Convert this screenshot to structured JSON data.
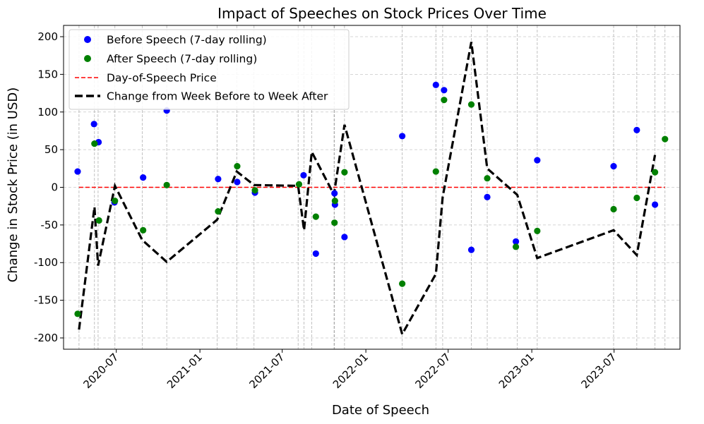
{
  "chart_data": {
    "type": "scatter",
    "title": "Impact of Speeches on Stock Prices Over Time",
    "xlabel": "Date of Speech",
    "ylabel": "Change in Stock Price (in USD)",
    "xlim": [
      "2020-03-07",
      "2023-11-23"
    ],
    "ylim": [
      -215,
      215
    ],
    "x_ticks": [
      "2020-07-01",
      "2021-01-01",
      "2021-07-01",
      "2022-01-01",
      "2022-07-01",
      "2023-01-01",
      "2023-07-01"
    ],
    "x_tick_labels": [
      "2020-07",
      "2021-01",
      "2021-07",
      "2022-01",
      "2022-07",
      "2023-01",
      "2023-07"
    ],
    "y_ticks": [
      -200,
      -150,
      -100,
      -50,
      0,
      50,
      100,
      150,
      200
    ],
    "grid": true,
    "legend_placement": "top-left",
    "speech_dates": [
      "2020-04-10",
      "2020-05-14",
      "2020-05-22",
      "2020-06-28",
      "2020-08-27",
      "2020-10-20",
      "2021-02-08",
      "2021-03-23",
      "2021-04-30",
      "2021-08-05",
      "2021-08-18",
      "2021-09-04",
      "2021-10-23",
      "2021-10-24",
      "2021-11-15",
      "2022-03-22",
      "2022-06-04",
      "2022-06-19",
      "2022-08-21",
      "2022-09-25",
      "2022-11-30",
      "2023-01-13",
      "2023-06-30",
      "2023-08-20",
      "2023-09-29",
      "2023-10-21"
    ],
    "series": [
      {
        "name": "Before Speech (7-day rolling)",
        "kind": "scatter",
        "color": "#0000ff",
        "x": [
          "2020-04-07",
          "2020-05-13",
          "2020-05-23",
          "2020-06-27",
          "2020-08-29",
          "2020-10-20",
          "2021-02-10",
          "2021-03-24",
          "2021-05-02",
          "2021-08-17",
          "2021-09-13",
          "2021-10-24",
          "2021-10-25",
          "2021-11-15",
          "2022-03-22",
          "2022-06-04",
          "2022-06-22",
          "2022-08-21",
          "2022-09-25",
          "2022-11-27",
          "2023-01-13",
          "2023-06-30",
          "2023-08-20",
          "2023-09-29"
        ],
        "y": [
          21,
          84,
          60,
          -20,
          13,
          102,
          11,
          7,
          -7,
          16,
          -88,
          -8,
          -23,
          -66,
          68,
          136,
          129,
          -83,
          -13,
          -72,
          36,
          28,
          76,
          -23
        ]
      },
      {
        "name": "After Speech (7-day rolling)",
        "kind": "scatter",
        "color": "#008000",
        "x": [
          "2020-04-07",
          "2020-05-14",
          "2020-05-24",
          "2020-06-28",
          "2020-08-29",
          "2020-10-20",
          "2021-02-10",
          "2021-03-24",
          "2021-05-02",
          "2021-08-07",
          "2021-09-13",
          "2021-10-24",
          "2021-10-25",
          "2021-11-15",
          "2022-03-22",
          "2022-06-04",
          "2022-06-22",
          "2022-08-21",
          "2022-09-25",
          "2022-11-27",
          "2023-01-13",
          "2023-06-30",
          "2023-08-20",
          "2023-09-29",
          "2023-10-21"
        ],
        "y": [
          -168,
          58,
          -44,
          -18,
          -57,
          3,
          -32,
          28,
          -4,
          4,
          -39,
          -47,
          -18,
          20,
          -128,
          21,
          116,
          110,
          12,
          -79,
          -58,
          -29,
          -14,
          20,
          64
        ]
      },
      {
        "name": "Day-of-Speech Price",
        "kind": "line",
        "style": "dashed",
        "color": "#ff0000",
        "x": [
          "2020-04-10",
          "2023-10-21"
        ],
        "y": [
          0,
          0
        ]
      },
      {
        "name": "Change from Week Before to Week After",
        "kind": "line",
        "style": "dashed-thick",
        "color": "#000000",
        "x": [
          "2020-04-10",
          "2020-05-14",
          "2020-05-22",
          "2020-06-28",
          "2020-08-27",
          "2020-10-20",
          "2021-02-08",
          "2021-03-23",
          "2021-04-30",
          "2021-08-05",
          "2021-08-18",
          "2021-09-04",
          "2021-10-23",
          "2021-10-24",
          "2021-11-15",
          "2022-03-22",
          "2022-06-04",
          "2022-06-19",
          "2022-08-21",
          "2022-09-25",
          "2022-11-30",
          "2023-01-13",
          "2023-06-30",
          "2023-08-20",
          "2023-09-29"
        ],
        "y": [
          -189,
          -26,
          -104,
          2,
          -70,
          -99,
          -43,
          21,
          3,
          2,
          -57,
          47,
          -10,
          -5,
          83,
          -195,
          -115,
          -13,
          193,
          25,
          -10,
          -94,
          -57,
          -90,
          43
        ]
      }
    ]
  }
}
